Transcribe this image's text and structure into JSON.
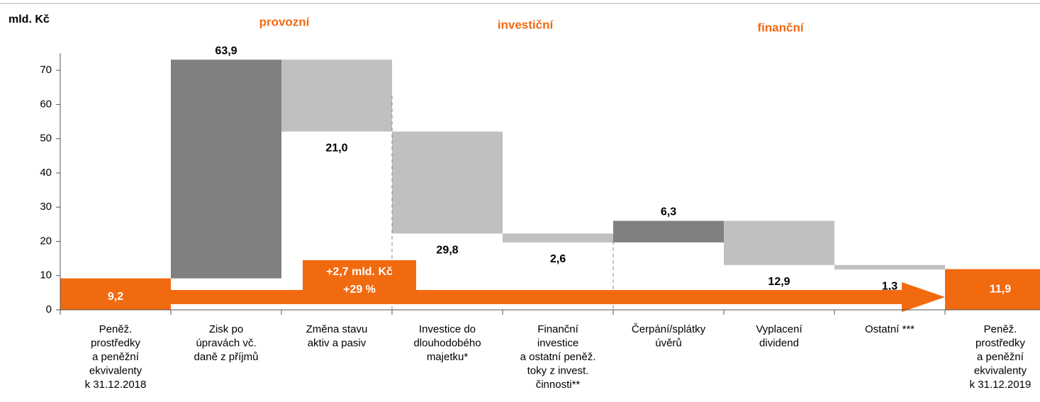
{
  "chart_data": {
    "type": "waterfall",
    "axis_unit_label": "mld. Kč",
    "group_labels": [
      "provozní",
      "investiční",
      "finanční"
    ],
    "categories": [
      [
        "Peněž.",
        "prostředky",
        "a peněžní",
        "ekvivalenty",
        "k 31.12.2018"
      ],
      [
        "Zisk po",
        "úpravách vč.",
        "daně z příjmů"
      ],
      [
        "Změna stavu",
        "aktiv a pasiv"
      ],
      [
        "Investice do",
        "dlouhodobého",
        "majetku*"
      ],
      [
        "Finanční",
        "investice",
        "a ostatní peněž.",
        "toky z invest.",
        "činnosti**"
      ],
      [
        "Čerpání/splátky",
        "úvěrů"
      ],
      [
        "Vyplacení",
        "dividend"
      ],
      [
        "Ostatní ***"
      ],
      [
        "Peněž.",
        "prostředky",
        "a peněžní",
        "ekvivalenty",
        "k 31.12.2019"
      ]
    ],
    "measures": [
      "total",
      "relative",
      "relative",
      "relative",
      "relative",
      "relative",
      "relative",
      "relative",
      "total"
    ],
    "values": [
      9.2,
      63.9,
      -21.0,
      -29.8,
      -2.6,
      6.3,
      -12.9,
      -1.3,
      11.9
    ],
    "value_labels": [
      "9,2",
      "63,9",
      "21,0",
      "29,8",
      "2,6",
      "6,3",
      "12,9",
      "1,3",
      "11,9"
    ],
    "colors": {
      "total": "#f26a10",
      "increase": "#808080",
      "decrease": "#c0c0c0"
    },
    "annotation": [
      "+2,7 mld. Kč",
      "+29 %"
    ],
    "ylim": [
      0,
      75
    ],
    "yticks": [
      0,
      10,
      20,
      30,
      40,
      50,
      60,
      70
    ]
  }
}
